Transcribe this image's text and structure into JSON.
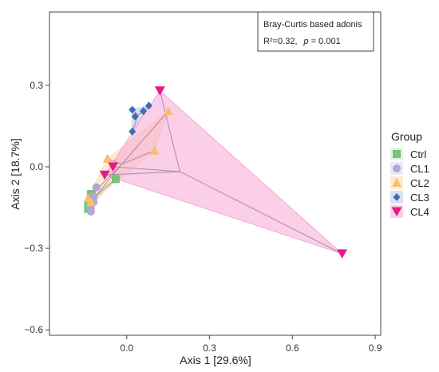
{
  "chart_data": {
    "type": "scatter",
    "title": "",
    "xlabel": "Axis 1 [29.6%]",
    "ylabel": "Axis 2 [18.7%]",
    "xlim": [
      -0.28,
      0.92
    ],
    "ylim": [
      -0.62,
      0.57
    ],
    "xticks": [
      0.0,
      0.3,
      0.6,
      0.9
    ],
    "xtick_labels": [
      "0.0",
      "0.3",
      "0.6",
      "0.9"
    ],
    "yticks": [
      0.3,
      0.0,
      -0.3,
      -0.6
    ],
    "ytick_labels": [
      "0.3",
      "0.0",
      "−0.3",
      "−0.6"
    ],
    "grid": false,
    "legend": {
      "title": "Group",
      "placement": "right"
    },
    "annotation": {
      "line1": "Bray-Curtis based adonis",
      "r2_label": "R²=0.32,",
      "p_label": "p",
      "p_value": " = 0.001"
    },
    "series": [
      {
        "name": "Ctrl",
        "marker": "square",
        "color": "#79c27b",
        "fill": "#cfe8c8",
        "x": [
          -0.04,
          -0.13,
          -0.13,
          -0.14,
          -0.14
        ],
        "y": [
          -0.045,
          -0.1,
          -0.115,
          -0.14,
          -0.155
        ]
      },
      {
        "name": "CL1",
        "marker": "circle",
        "color": "#b3a8d4",
        "fill": "#dad4ec",
        "x": [
          -0.11,
          -0.12,
          -0.12,
          -0.13,
          -0.13
        ],
        "y": [
          -0.075,
          -0.11,
          -0.13,
          -0.15,
          -0.165
        ]
      },
      {
        "name": "CL2",
        "marker": "triangle",
        "color": "#f8bd6e",
        "fill": "#fbdcae",
        "x": [
          0.15,
          0.1,
          -0.07,
          -0.14,
          -0.13
        ],
        "y": [
          0.205,
          0.06,
          0.03,
          -0.115,
          -0.13
        ]
      },
      {
        "name": "CL3",
        "marker": "diamond",
        "color": "#3e6fb5",
        "fill": "#b9cbe6",
        "x": [
          0.02,
          0.08,
          0.06,
          0.03,
          0.02
        ],
        "y": [
          0.21,
          0.225,
          0.205,
          0.185,
          0.13
        ]
      },
      {
        "name": "CL4",
        "marker": "triangle-down",
        "color": "#e8198b",
        "fill": "#f6a8d3",
        "x": [
          0.12,
          0.78,
          -0.08,
          -0.05
        ],
        "y": [
          0.28,
          -0.32,
          -0.03,
          0.0
        ]
      }
    ]
  }
}
